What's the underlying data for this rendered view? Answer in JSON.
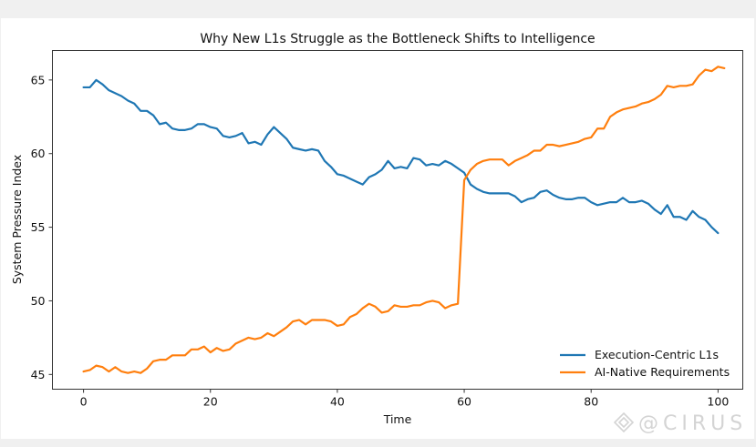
{
  "chart_data": {
    "type": "line",
    "title": "Why New L1s Struggle as the Bottleneck Shifts to Intelligence",
    "xlabel": "Time",
    "ylabel": "System Pressure Index",
    "xlim": [
      -4.9,
      103.9
    ],
    "ylim": [
      44.0,
      67.0
    ],
    "xticks": [
      0,
      20,
      40,
      60,
      80,
      100
    ],
    "xtick_labels": [
      "0",
      "20",
      "40",
      "60",
      "80",
      "100"
    ],
    "yticks": [
      45,
      50,
      55,
      60,
      65
    ],
    "ytick_labels": [
      "45",
      "50",
      "55",
      "60",
      "65"
    ],
    "grid": false,
    "legend_position": "lower-right",
    "series": [
      {
        "name": "Execution-Centric L1s",
        "color": "#1f77b4",
        "x_start": 0,
        "values": [
          64.5,
          64.5,
          65.0,
          64.7,
          64.3,
          64.1,
          63.9,
          63.6,
          63.4,
          62.9,
          62.9,
          62.6,
          62.0,
          62.1,
          61.7,
          61.6,
          61.6,
          61.7,
          62.0,
          62.0,
          61.8,
          61.7,
          61.2,
          61.1,
          61.2,
          61.4,
          60.7,
          60.8,
          60.6,
          61.3,
          61.8,
          61.4,
          61.0,
          60.4,
          60.3,
          60.2,
          60.3,
          60.2,
          59.5,
          59.1,
          58.6,
          58.5,
          58.3,
          58.1,
          57.9,
          58.4,
          58.6,
          58.9,
          59.5,
          59.0,
          59.1,
          59.0,
          59.7,
          59.6,
          59.2,
          59.3,
          59.2,
          59.5,
          59.3,
          59.0,
          58.7,
          57.9,
          57.6,
          57.4,
          57.3,
          57.3,
          57.3,
          57.3,
          57.1,
          56.7,
          56.9,
          57.0,
          57.4,
          57.5,
          57.2,
          57.0,
          56.9,
          56.9,
          57.0,
          57.0,
          56.7,
          56.5,
          56.6,
          56.7,
          56.7,
          57.0,
          56.7,
          56.7,
          56.8,
          56.6,
          56.2,
          55.9,
          56.5,
          55.7,
          55.7,
          55.5,
          56.1,
          55.7,
          55.5,
          55.0,
          54.6
        ]
      },
      {
        "name": "AI-Native Requirements",
        "color": "#ff7f0e",
        "x_start": 0,
        "values": [
          45.2,
          45.3,
          45.6,
          45.5,
          45.2,
          45.5,
          45.2,
          45.1,
          45.2,
          45.1,
          45.4,
          45.9,
          46.0,
          46.0,
          46.3,
          46.3,
          46.3,
          46.7,
          46.7,
          46.9,
          46.5,
          46.8,
          46.6,
          46.7,
          47.1,
          47.3,
          47.5,
          47.4,
          47.5,
          47.8,
          47.6,
          47.9,
          48.2,
          48.6,
          48.7,
          48.4,
          48.7,
          48.7,
          48.7,
          48.6,
          48.3,
          48.4,
          48.9,
          49.1,
          49.5,
          49.8,
          49.6,
          49.2,
          49.3,
          49.7,
          49.6,
          49.6,
          49.7,
          49.7,
          49.9,
          50.0,
          49.9,
          49.5,
          49.7,
          49.8,
          58.2,
          58.9,
          59.3,
          59.5,
          59.6,
          59.6,
          59.6,
          59.2,
          59.5,
          59.7,
          59.9,
          60.2,
          60.2,
          60.6,
          60.6,
          60.5,
          60.6,
          60.7,
          60.8,
          61.0,
          61.1,
          61.7,
          61.7,
          62.5,
          62.8,
          63.0,
          63.1,
          63.2,
          63.4,
          63.5,
          63.7,
          64.0,
          64.6,
          64.5,
          64.6,
          64.6,
          64.7,
          65.3,
          65.7,
          65.6,
          65.9,
          65.8
        ]
      }
    ]
  },
  "watermark": "@CIRUS"
}
